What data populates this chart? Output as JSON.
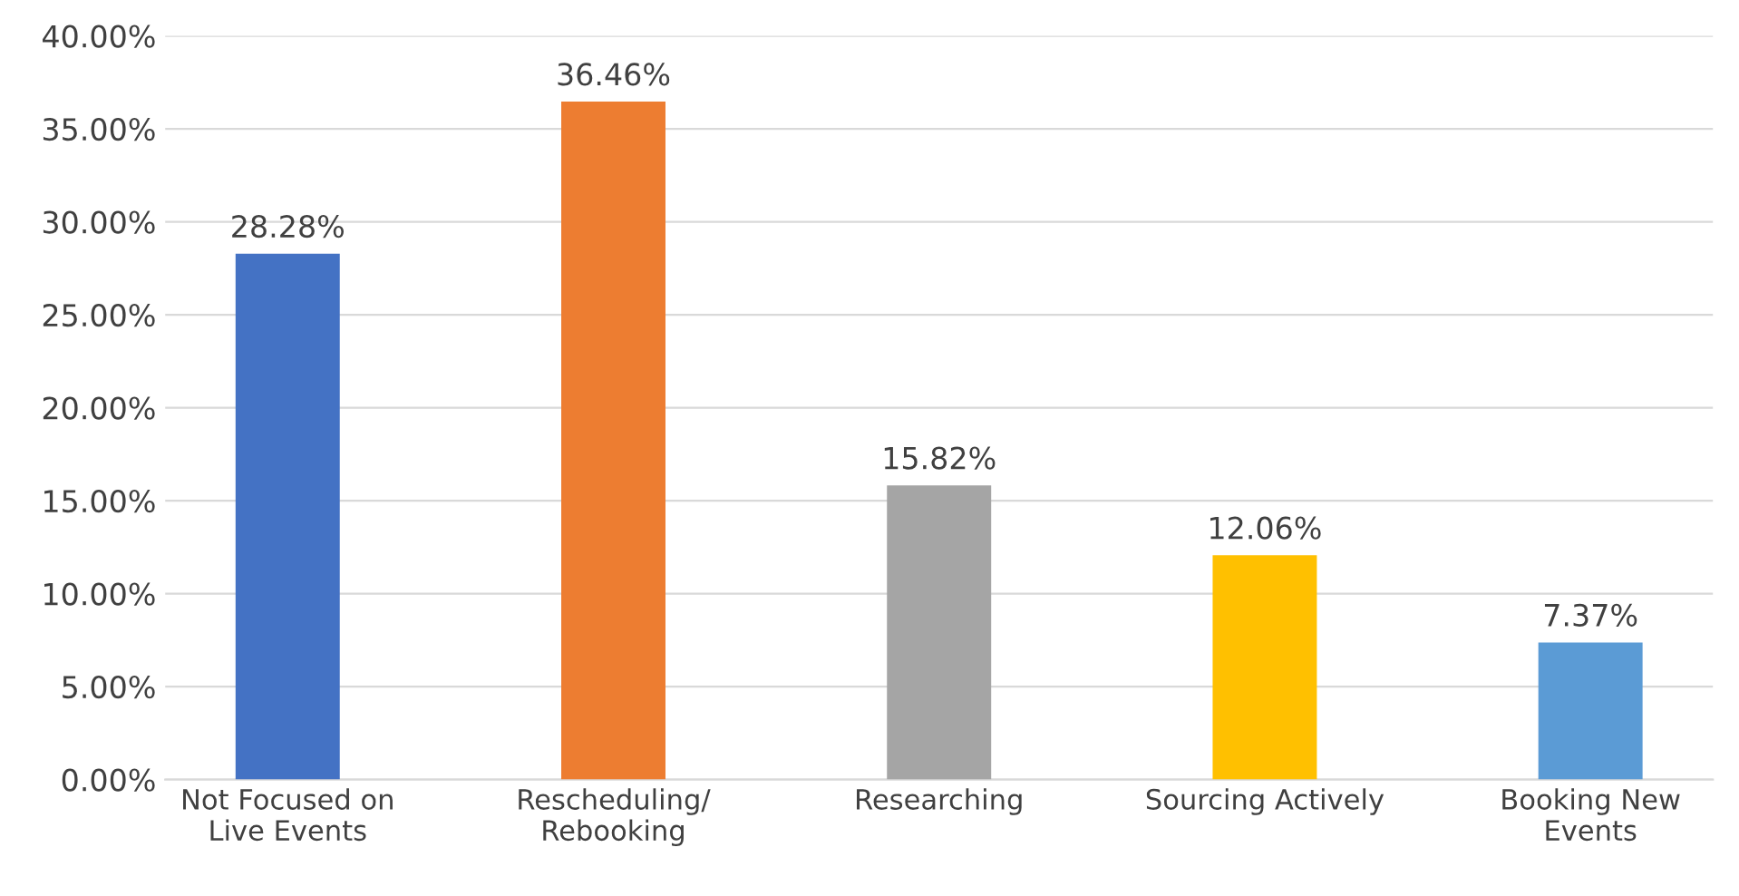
{
  "chart_data": {
    "type": "bar",
    "categories": [
      "Not Focused on\nLive Events",
      "Rescheduling/\nRebooking",
      "Researching",
      "Sourcing Actively",
      "Booking New\nEvents"
    ],
    "values": [
      28.28,
      36.46,
      15.82,
      12.06,
      7.37
    ],
    "colors": [
      "#4472c4",
      "#ed7d31",
      "#a5a5a5",
      "#ffc000",
      "#5b9bd5"
    ],
    "value_labels": [
      "28.28%",
      "36.46%",
      "15.82%",
      "12.06%",
      "7.37%"
    ],
    "ylim": [
      0,
      40
    ],
    "yticks": [
      {
        "value": 0,
        "label": "0.00%"
      },
      {
        "value": 5,
        "label": "5.00%"
      },
      {
        "value": 10,
        "label": "10.00%"
      },
      {
        "value": 15,
        "label": "15.00%"
      },
      {
        "value": 20,
        "label": "20.00%"
      },
      {
        "value": 25,
        "label": "25.00%"
      },
      {
        "value": 30,
        "label": "30.00%"
      },
      {
        "value": 35,
        "label": "35.00%"
      },
      {
        "value": 40,
        "label": "40.00%"
      }
    ],
    "grid": "y"
  }
}
